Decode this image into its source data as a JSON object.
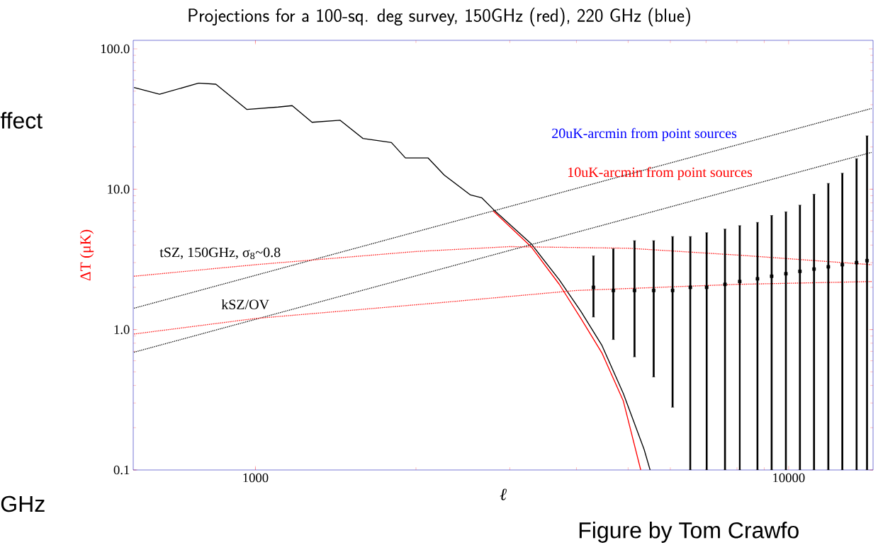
{
  "chart_data": {
    "type": "line",
    "title": "Projections for a 100-sq. deg survey, 150GHz (red), 220 GHz  (blue)",
    "xlabel": "ℓ",
    "ylabel": "ΔT (μK)",
    "log": "xy",
    "xlim": [
      590,
      14400
    ],
    "ylim": [
      0.1,
      115
    ],
    "xticks": [
      1000,
      10000
    ],
    "yticks": [
      {
        "value": 0.1,
        "label": "0.1"
      },
      {
        "value": 1,
        "label": "1.0"
      },
      {
        "value": 10,
        "label": "10.0"
      },
      {
        "value": 100,
        "label": "100.0"
      }
    ],
    "grid": false,
    "series": [
      {
        "color": "#000000",
        "x": [
          592,
          661,
          783,
          843,
          964,
          1103,
          1172,
          1277,
          1442,
          1591,
          1799,
          1911,
          2108,
          2261,
          2531,
          2656,
          2792,
          3288,
          3715,
          4077,
          4467,
          4898,
          5358,
          5498
        ],
        "values": [
          53,
          47.5,
          57,
          56,
          37,
          38.5,
          39.4,
          30,
          31,
          23,
          21.5,
          16.7,
          16.7,
          12.6,
          9.1,
          8.7,
          7.2,
          4.1,
          2.26,
          1.35,
          0.77,
          0.35,
          0.14,
          0.1
        ]
      },
      {
        "color": "#ff0000",
        "x": [
          2792,
          3288,
          3715,
          4077,
          4467,
          4898,
          5280
        ],
        "values": [
          7.0,
          3.9,
          2.1,
          1.2,
          0.68,
          0.31,
          0.1
        ]
      },
      {
        "color": "#000000",
        "line_style": "dotted",
        "x": [
          592,
          14300
        ],
        "values": [
          1.42,
          37.6
        ]
      },
      {
        "color": "#000000",
        "line_style": "dotted",
        "x": [
          592,
          14300
        ],
        "values": [
          0.69,
          18.3
        ]
      },
      {
        "color": "#ff0000",
        "line_style": "dotted",
        "x": [
          592,
          1000,
          2000,
          3000,
          5000,
          8000,
          14300
        ],
        "values": [
          2.4,
          2.9,
          3.6,
          3.9,
          3.8,
          3.4,
          2.9
        ]
      },
      {
        "color": "#ff0000",
        "line_style": "dotted",
        "x": [
          592,
          1000,
          2200,
          4000,
          8000,
          14300
        ],
        "values": [
          0.93,
          1.2,
          1.55,
          1.9,
          2.1,
          2.2
        ]
      },
      {
        "type": "scatter",
        "marker": "square",
        "color": "#000000",
        "x": [
          4305,
          4691,
          5140,
          5584,
          6059,
          6541,
          7019,
          7598,
          8097,
          8742,
          9294,
          9883,
          10500,
          11160,
          11870,
          12610,
          13410,
          14030
        ],
        "values": [
          2.0,
          1.9,
          1.9,
          1.9,
          1.9,
          2.0,
          2.0,
          2.1,
          2.2,
          2.3,
          2.4,
          2.5,
          2.6,
          2.7,
          2.8,
          2.9,
          3.0,
          3.1
        ],
        "errors": [
          [
            1.23,
            3.35
          ],
          [
            0.85,
            3.77
          ],
          [
            0.64,
            4.3
          ],
          [
            0.46,
            4.3
          ],
          [
            0.28,
            4.6
          ],
          [
            0.1,
            4.6
          ],
          [
            0.1,
            4.9
          ],
          [
            0.1,
            5.2
          ],
          [
            0.1,
            5.5
          ],
          [
            0.1,
            5.8
          ],
          [
            0.1,
            6.5
          ],
          [
            0.1,
            6.9
          ],
          [
            0.1,
            7.7
          ],
          [
            0.1,
            9.2
          ],
          [
            0.1,
            11
          ],
          [
            0.1,
            13
          ],
          [
            0.1,
            16.5
          ],
          [
            0.1,
            24
          ]
        ]
      }
    ],
    "annotations": [
      "tSZ, 150GHz, σ$_{8}$~0.8",
      "kSZ/OV",
      "20uK-arcmin from point sources",
      "10uK-arcmin from point sources",
      "ffect",
      "GHz",
      "Figure by Tom Crawfo"
    ]
  }
}
